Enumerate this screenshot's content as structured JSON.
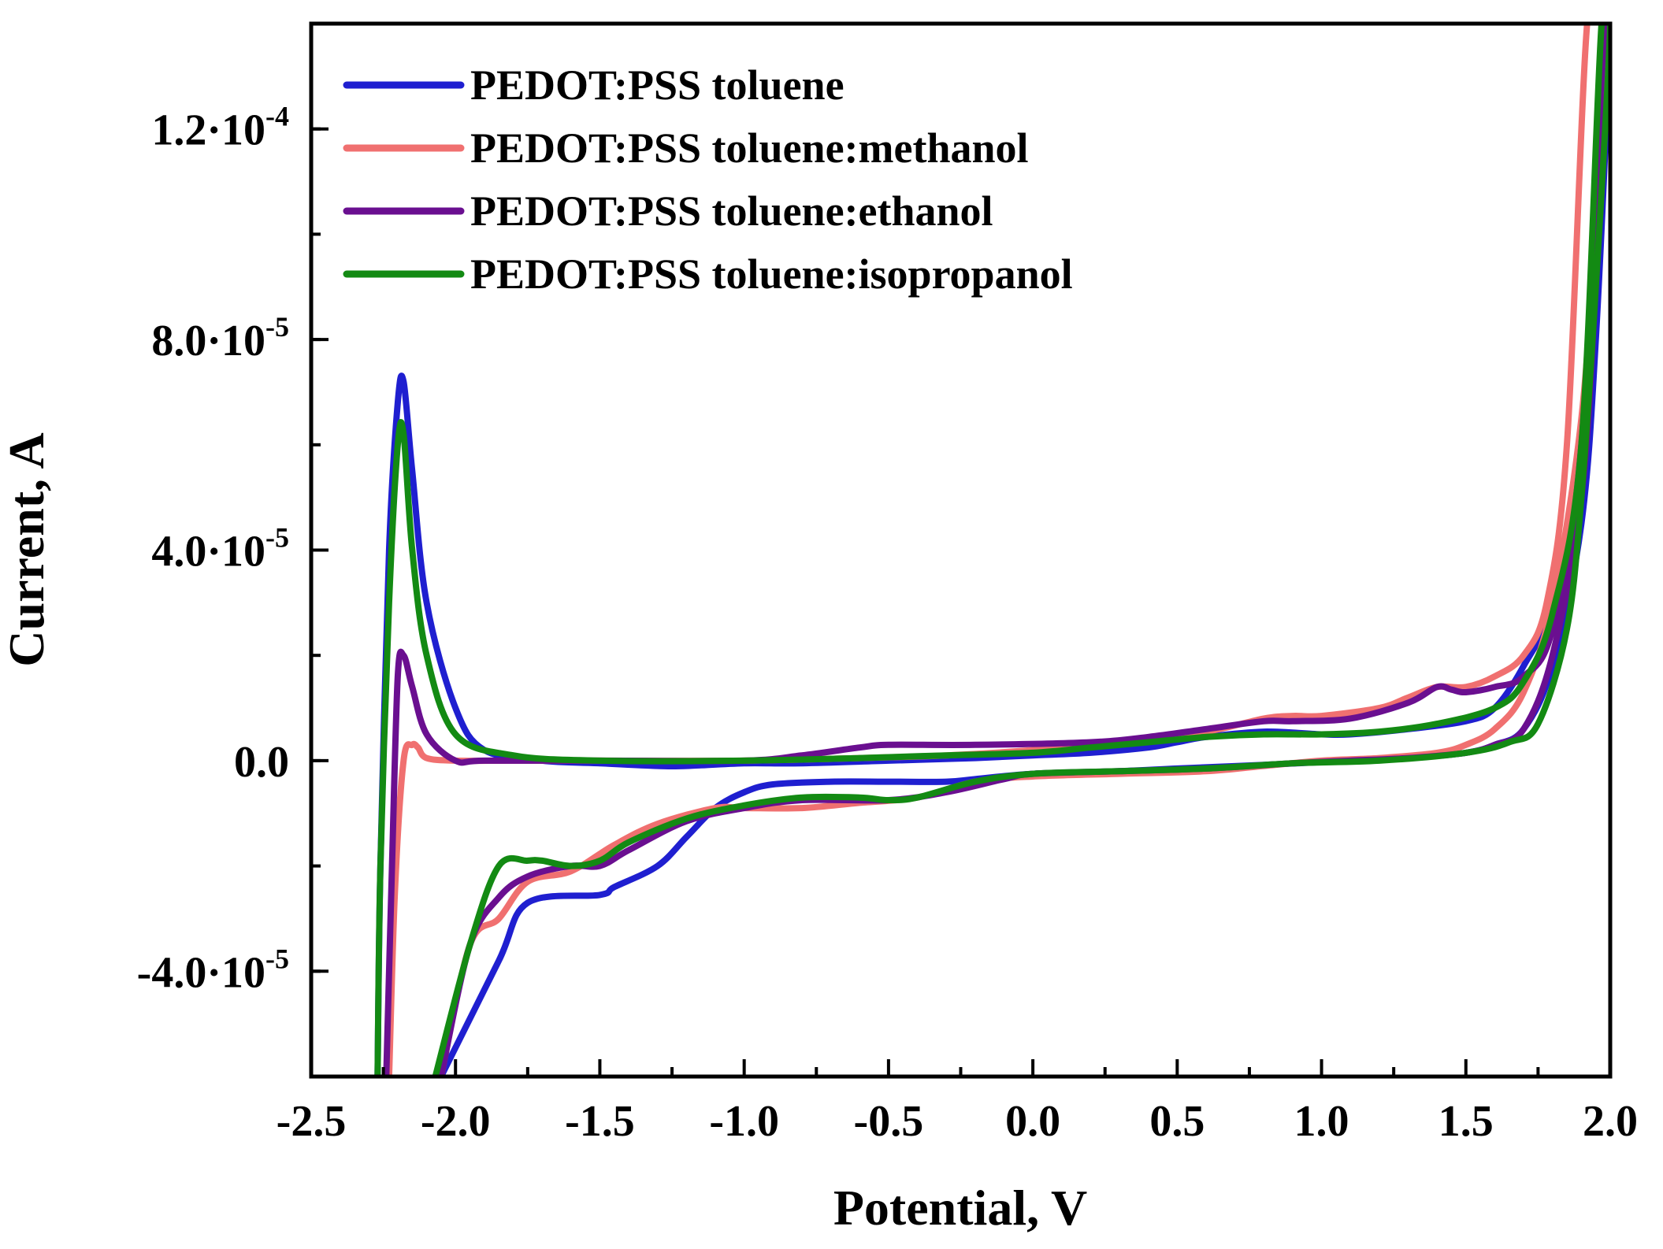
{
  "chart_data": {
    "type": "line",
    "xlabel": "Potential, V",
    "ylabel": "Current, A",
    "xlim": [
      -2.5,
      2.0
    ],
    "ylim": [
      -6e-05,
      0.00014
    ],
    "x_ticks": [
      {
        "value": -2.5,
        "label": "-2.5"
      },
      {
        "value": -2.0,
        "label": "-2.0"
      },
      {
        "value": -1.5,
        "label": "-1.5"
      },
      {
        "value": -1.0,
        "label": "-1.0"
      },
      {
        "value": -0.5,
        "label": "-0.5"
      },
      {
        "value": 0.0,
        "label": "0.0"
      },
      {
        "value": 0.5,
        "label": "0.5"
      },
      {
        "value": 1.0,
        "label": "1.0"
      },
      {
        "value": 1.5,
        "label": "1.5"
      },
      {
        "value": 2.0,
        "label": "2.0"
      }
    ],
    "y_ticks": [
      {
        "value": -4e-05,
        "mant": "-4.0·10",
        "exp": "-5"
      },
      {
        "value": 0.0,
        "mant": "0.0",
        "exp": ""
      },
      {
        "value": 4e-05,
        "mant": "4.0·10",
        "exp": "-5"
      },
      {
        "value": 8e-05,
        "mant": "8.0·10",
        "exp": "-5"
      },
      {
        "value": 0.00012,
        "mant": "1.2·10",
        "exp": "-4"
      }
    ],
    "grid": false,
    "legend_position": "top-left",
    "series": [
      {
        "name": "PEDOT:PSS toluene",
        "color": "#1f1fd0",
        "x": [
          -2.05,
          -1.85,
          -1.75,
          -1.5,
          -1.45,
          -1.3,
          -1.2,
          -1.1,
          -1.0,
          -0.9,
          -0.7,
          -0.5,
          -0.3,
          -0.2,
          0.0,
          0.3,
          0.5,
          0.8,
          1.1,
          1.3,
          1.5,
          1.6,
          1.7,
          1.8,
          1.9,
          1.95,
          2.0,
          1.98,
          1.9,
          1.8,
          1.7,
          1.6,
          1.5,
          1.3,
          1.1,
          1.0,
          0.8,
          0.6,
          0.5,
          0.4,
          0.2,
          0.0,
          -0.2,
          -0.5,
          -0.8,
          -1.0,
          -1.2,
          -1.3,
          -1.5,
          -1.7,
          -1.9,
          -2.0,
          -2.1,
          -2.15,
          -2.18,
          -2.2,
          -2.23,
          -2.26,
          -2.27
        ],
        "y": [
          -6e-05,
          -3.8e-05,
          -2.7e-05,
          -2.55e-05,
          -2.4e-05,
          -2e-05,
          -1.45e-05,
          -9e-06,
          -6e-06,
          -4.5e-06,
          -4e-06,
          -4e-06,
          -4e-06,
          -3.5e-06,
          -2.5e-06,
          -2e-06,
          -1.5e-06,
          -8e-07,
          0.0,
          5e-07,
          1.5e-06,
          3e-06,
          6e-06,
          1.8e-05,
          4.5e-05,
          8e-05,
          0.00014,
          0.00014,
          6e-05,
          3e-05,
          1.8e-05,
          1e-05,
          7.5e-06,
          6e-06,
          5e-06,
          5e-06,
          5.5e-06,
          4.5e-06,
          3.5e-06,
          2.5e-06,
          1.5e-06,
          1e-06,
          5e-07,
          0.0,
          -5e-07,
          -5e-07,
          -1e-06,
          -1e-06,
          -5e-07,
          0.0,
          2e-06,
          1e-05,
          3e-05,
          5.5e-05,
          7.2e-05,
          6.8e-05,
          4e-05,
          -2e-05,
          -6e-05
        ]
      },
      {
        "name": "PEDOT:PSS toluene:methanol",
        "color": "#f07070",
        "x": [
          -2.05,
          -1.95,
          -1.85,
          -1.75,
          -1.6,
          -1.45,
          -1.3,
          -1.1,
          -1.0,
          -0.8,
          -0.6,
          -0.4,
          -0.2,
          0.0,
          0.3,
          0.6,
          0.8,
          1.0,
          1.2,
          1.4,
          1.5,
          1.6,
          1.7,
          1.8,
          1.9,
          1.95,
          1.97,
          1.92,
          1.85,
          1.78,
          1.7,
          1.6,
          1.5,
          1.4,
          1.3,
          1.2,
          1.0,
          0.9,
          0.8,
          0.6,
          0.3,
          0.0,
          -0.3,
          -0.6,
          -1.0,
          -1.5,
          -1.8,
          -2.0,
          -2.1,
          -2.13,
          -2.15,
          -2.18,
          -2.21,
          -2.23
        ],
        "y": [
          -6e-05,
          -3.5e-05,
          -3e-05,
          -2.3e-05,
          -2.1e-05,
          -1.6e-05,
          -1.2e-05,
          -9e-06,
          -9e-06,
          -9e-06,
          -8e-06,
          -7e-06,
          -4e-06,
          -3e-06,
          -2.5e-06,
          -2e-06,
          -1e-06,
          0.0,
          5e-07,
          1.5e-06,
          3e-06,
          6e-06,
          1.3e-05,
          3e-05,
          6.5e-05,
          0.000105,
          0.00014,
          0.00014,
          6e-05,
          3e-05,
          2e-05,
          1.6e-05,
          1.4e-05,
          1.4e-05,
          1.2e-05,
          1e-05,
          8.5e-06,
          8.5e-06,
          8e-06,
          5.5e-06,
          3.5e-06,
          2e-06,
          1e-06,
          5e-07,
          0.0,
          0.0,
          0.0,
          0.0,
          5e-07,
          2.5e-06,
          3e-06,
          0.0,
          -2.5e-05,
          -6e-05
        ]
      },
      {
        "name": "PEDOT:PSS toluene:ethanol",
        "color": "#6a0f90",
        "x": [
          -2.05,
          -1.95,
          -1.85,
          -1.75,
          -1.6,
          -1.5,
          -1.4,
          -1.2,
          -1.0,
          -0.8,
          -0.5,
          -0.3,
          -0.1,
          0.0,
          0.3,
          0.6,
          0.9,
          1.1,
          1.3,
          1.5,
          1.6,
          1.7,
          1.8,
          1.9,
          1.95,
          2.0,
          1.98,
          1.9,
          1.8,
          1.7,
          1.6,
          1.5,
          1.45,
          1.4,
          1.3,
          1.1,
          0.9,
          0.8,
          0.6,
          0.4,
          0.2,
          -0.2,
          -0.5,
          -0.6,
          -0.8,
          -1.0,
          -1.5,
          -1.9,
          -2.0,
          -2.1,
          -2.15,
          -2.18,
          -2.2,
          -2.22,
          -2.24
        ],
        "y": [
          -6e-05,
          -3.5e-05,
          -2.6e-05,
          -2.2e-05,
          -2e-05,
          -2e-05,
          -1.7e-05,
          -1.15e-05,
          -9e-06,
          -7.5e-06,
          -7.5e-06,
          -6e-06,
          -3.5e-06,
          -2.5e-06,
          -2e-06,
          -1.5e-06,
          -5e-07,
          0.0,
          5e-07,
          1.5e-06,
          3e-06,
          6e-06,
          2e-05,
          5e-05,
          9e-05,
          0.00014,
          0.00014,
          6e-05,
          2.5e-05,
          1.6e-05,
          1.4e-05,
          1.3e-05,
          1.35e-05,
          1.4e-05,
          1.1e-05,
          8e-06,
          7.5e-06,
          7.5e-06,
          6e-06,
          4.5e-06,
          3.5e-06,
          3e-06,
          3e-06,
          2.5e-06,
          1e-06,
          0.0,
          0.0,
          0.0,
          0.0,
          5e-06,
          1.4e-05,
          2e-05,
          1.6e-05,
          -2e-05,
          -6e-05
        ]
      },
      {
        "name": "PEDOT:PSS toluene:isopropanol",
        "color": "#138a13",
        "x": [
          -2.07,
          -1.95,
          -1.85,
          -1.75,
          -1.7,
          -1.6,
          -1.5,
          -1.4,
          -1.2,
          -1.0,
          -0.8,
          -0.6,
          -0.5,
          -0.4,
          -0.2,
          0.0,
          0.3,
          0.6,
          0.9,
          1.2,
          1.5,
          1.65,
          1.75,
          1.85,
          1.9,
          1.95,
          2.0,
          1.97,
          1.9,
          1.8,
          1.7,
          1.6,
          1.4,
          1.2,
          1.0,
          0.8,
          0.6,
          0.4,
          0.2,
          0.0,
          -0.3,
          -0.6,
          -1.0,
          -1.5,
          -1.8,
          -2.0,
          -2.1,
          -2.15,
          -2.18,
          -2.2,
          -2.23,
          -2.26,
          -2.27
        ],
        "y": [
          -6e-05,
          -3.5e-05,
          -2e-05,
          -1.9e-05,
          -1.9e-05,
          -2e-05,
          -1.9e-05,
          -1.55e-05,
          -1.1e-05,
          -8.5e-06,
          -7e-06,
          -7e-06,
          -7.5e-06,
          -7e-06,
          -4e-06,
          -2.5e-06,
          -2e-06,
          -1.5e-06,
          -5e-07,
          0.0,
          1.5e-06,
          3.5e-06,
          7e-06,
          2.5e-05,
          5e-05,
          9e-05,
          0.00014,
          0.00014,
          6e-05,
          2.8e-05,
          1.5e-05,
          1e-05,
          7e-06,
          5.5e-06,
          5e-06,
          5e-06,
          4.5e-06,
          3.5e-06,
          2.5e-06,
          1.5e-06,
          1e-06,
          5e-07,
          0.0,
          0.0,
          1e-06,
          5e-06,
          2e-05,
          4e-05,
          6.2e-05,
          6e-05,
          3e-05,
          -2e-05,
          -6e-05
        ]
      }
    ]
  }
}
